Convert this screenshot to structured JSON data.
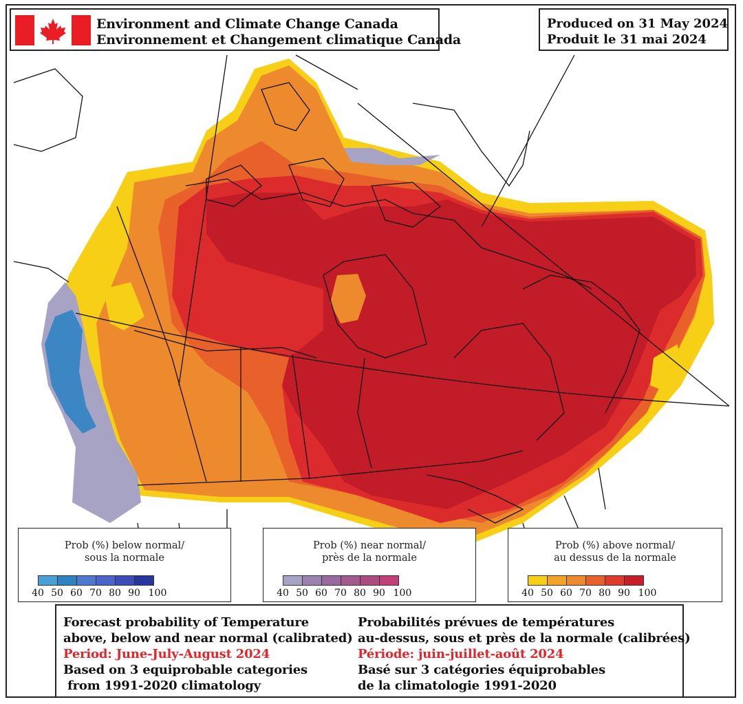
{
  "agency": {
    "name_en": "Environment and Climate Change Canada",
    "name_fr": "Environnement et Changement climatique Canada"
  },
  "produced": {
    "en": "Produced on 31 May 2024",
    "fr": "Produit le 31 mai 2024"
  },
  "legends": {
    "below": {
      "title_en": "Prob (%) below normal/",
      "title_fr": "sous la normale",
      "ticks": [
        "40",
        "50",
        "60",
        "70",
        "80",
        "90",
        "100"
      ],
      "colors": [
        "#4aa0d6",
        "#2f82c0",
        "#4f78cf",
        "#4a64cc",
        "#3c4cb8",
        "#26369c"
      ]
    },
    "near": {
      "title_en": "Prob (%) near normal/",
      "title_fr": "près de la normale",
      "ticks": [
        "40",
        "50",
        "60",
        "70",
        "80",
        "90",
        "100"
      ],
      "colors": [
        "#a7a3c4",
        "#9c82b2",
        "#9a699f",
        "#a45a8f",
        "#ad4b81",
        "#c23f7a"
      ]
    },
    "above": {
      "title_en": "Prob (%) above normal/",
      "title_fr": "au dessus de la normale",
      "ticks": [
        "40",
        "50",
        "60",
        "70",
        "80",
        "90",
        "100"
      ],
      "colors": [
        "#f6cf16",
        "#f2a428",
        "#ee8a2e",
        "#e8602a",
        "#df3a2c",
        "#c81e2a"
      ]
    }
  },
  "info": {
    "en": {
      "line1": "Forecast probability of Temperature",
      "line2": "above, below and near normal (calibrated)",
      "period": "Period: June-July-August 2024",
      "line4": "Based on 3 equiprobable categories",
      "line5": " from 1991-2020 climatology"
    },
    "fr": {
      "line1": "Probabilités prévues de températures",
      "line2": "au-dessus, sous et près de la normale (calibrées)",
      "period": "Période: juin-juillet-août 2024",
      "line4": "Basé sur 3 catégories équiprobables",
      "line5": "de la climatologie 1991-2020"
    }
  },
  "map_colors": {
    "yellow": "#f6cf16",
    "orange": "#ee8a2e",
    "red_orange": "#e8602a",
    "red": "#dc2b2c",
    "dark_red": "#c11c27",
    "blue": "#3c86c4",
    "lavender": "#a7a3c4",
    "flag_red": "#ea1c24"
  }
}
